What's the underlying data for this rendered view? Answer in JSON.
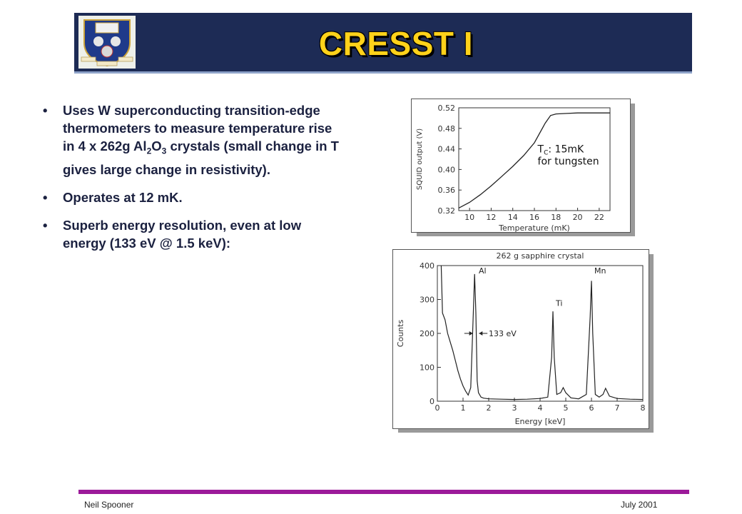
{
  "title": "CRESST I",
  "bullets": {
    "b1": "Uses W superconducting transition-edge thermometers to measure temperature rise in 4 x 262g Al",
    "b1_sub2": "2",
    "b1_mid": "O",
    "b1_sub3": "3",
    "b1_end": " crystals (small change in T gives large change in resistivity).",
    "b2": "Operates at 12 mK.",
    "b3": "Superb energy resolution, even at low energy (133 eV @ 1.5 keV):"
  },
  "bullet_char": "•",
  "footer": {
    "author": "Neil Spooner",
    "date": "July 2001"
  },
  "chart_data": [
    {
      "type": "line",
      "xlabel": "Temperature (mK)",
      "ylabel": "SQUID output (V)",
      "xlim": [
        9,
        23
      ],
      "ylim": [
        0.32,
        0.52
      ],
      "x_ticks": [
        "10",
        "12",
        "14",
        "16",
        "18",
        "20",
        "22"
      ],
      "y_ticks": [
        "0.32",
        "0.36",
        "0.40",
        "0.44",
        "0.48",
        "0.52"
      ],
      "annotation_tc": "T",
      "annotation_tc_sub": "C",
      "annotation_line1": ": 15mK",
      "annotation_line2": "for tungsten",
      "series": [
        {
          "x": [
            9,
            10,
            11,
            12,
            13,
            14,
            15,
            16,
            17,
            17.5,
            18,
            19,
            20,
            22,
            23
          ],
          "y": [
            0.325,
            0.336,
            0.351,
            0.368,
            0.387,
            0.406,
            0.427,
            0.452,
            0.49,
            0.505,
            0.508,
            0.509,
            0.51,
            0.51,
            0.51
          ]
        }
      ]
    },
    {
      "type": "line",
      "title": "262 g sapphire crystal",
      "xlabel": "Energy [keV]",
      "ylabel": "Counts",
      "xlim": [
        0,
        8
      ],
      "ylim": [
        0,
        400
      ],
      "x_ticks": [
        "0",
        "1",
        "2",
        "3",
        "4",
        "5",
        "6",
        "7",
        "8"
      ],
      "y_ticks": [
        "0",
        "100",
        "200",
        "300",
        "400"
      ],
      "peak_labels": [
        "Al",
        "Ti",
        "Mn"
      ],
      "resolution_label": "133 eV",
      "series": [
        {
          "x": [
            0.15,
            0.2,
            0.3,
            0.4,
            0.5,
            0.6,
            0.7,
            0.8,
            0.9,
            1.0,
            1.1,
            1.2,
            1.3,
            1.4,
            1.45,
            1.5,
            1.55,
            1.6,
            1.7,
            1.8,
            2.0,
            2.5,
            3.0,
            3.5,
            4.0,
            4.3,
            4.45,
            4.5,
            4.55,
            4.65,
            4.8,
            4.9,
            5.0,
            5.2,
            5.5,
            5.8,
            5.95,
            6.0,
            6.05,
            6.15,
            6.3,
            6.45,
            6.55,
            6.7,
            7.0,
            7.5,
            8.0
          ],
          "y": [
            400,
            260,
            240,
            200,
            175,
            150,
            120,
            90,
            65,
            45,
            30,
            18,
            40,
            260,
            375,
            260,
            60,
            25,
            12,
            9,
            7,
            6,
            5,
            6,
            8,
            12,
            130,
            265,
            130,
            20,
            25,
            40,
            25,
            10,
            7,
            20,
            250,
            355,
            200,
            20,
            12,
            20,
            38,
            15,
            8,
            6,
            5
          ]
        }
      ]
    }
  ]
}
